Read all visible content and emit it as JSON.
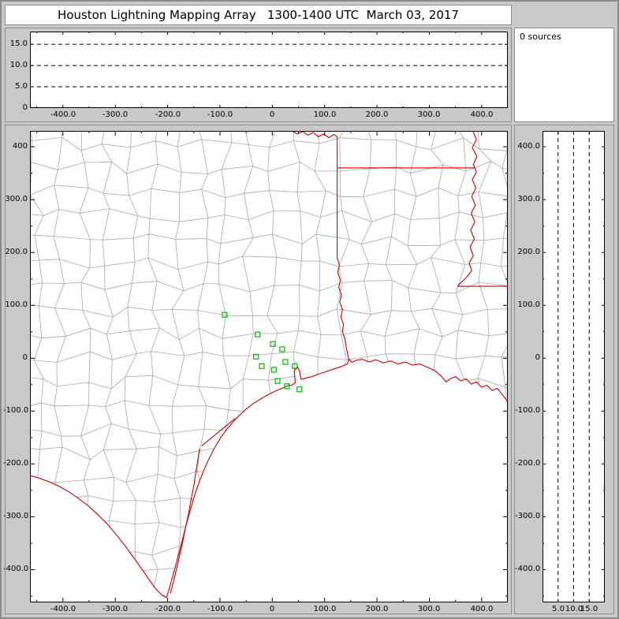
{
  "window": {
    "title": "Houston Lightning Mapping Array   1300-1400 UTC  March 03, 2017"
  },
  "sources_panel": {
    "label": "0 sources"
  },
  "alt_ew_panel": {
    "y_tick_labels": [
      "15.0",
      "10.0",
      "5.0",
      "0"
    ],
    "x_tick_labels": [
      "-400.0",
      "-300.0",
      "-200.0",
      "-100.0",
      "0",
      "100.0",
      "200.0",
      "300.0",
      "400.0"
    ]
  },
  "map_panel": {
    "y_tick_labels": [
      "400",
      "300.0",
      "200.0",
      "100.0",
      "0",
      "-100.0",
      "-200.0",
      "-300.0",
      "-400.0"
    ],
    "x_tick_labels": [
      "-400.0",
      "-300.0",
      "-200.0",
      "-100.0",
      "0",
      "100.0",
      "200.0",
      "300.0",
      "400.0"
    ]
  },
  "alt_ns_panel": {
    "y_tick_labels": [
      "400.0",
      "300.0",
      "200.0",
      "100.0",
      "0",
      "-100.0",
      "-200.0",
      "-300.0",
      "-400.0"
    ],
    "x_tick_labels": [
      "5.0",
      "10.0",
      "15.0"
    ]
  },
  "colors": {
    "window_bg": "#c9c9c9",
    "panel_border": "#8f8f8f",
    "plot_bg": "#ffffff",
    "axis": "#000000",
    "county_line": "#a8a8a8",
    "geo_line": "#cc0000",
    "station": "#00bb00"
  },
  "chart_data": [
    {
      "panel": "altitude_vs_east_west",
      "type": "scatter",
      "points": [],
      "sources_count": 0,
      "x_range_km": [
        -463,
        450
      ],
      "y_range_km": [
        0,
        18
      ],
      "x_ticks": [
        -400,
        -300,
        -200,
        -100,
        0,
        100,
        200,
        300,
        400
      ],
      "y_ticks": [
        15,
        10,
        5,
        0
      ],
      "dashed_gridlines_km": [
        5,
        10,
        15
      ],
      "grid": "dashed horizontal altitude lines",
      "legend": "none"
    },
    {
      "panel": "plan_view_map",
      "type": "scatter",
      "points": [],
      "sources_count": 0,
      "x_range_km": [
        -463,
        450
      ],
      "y_range_km": [
        -462,
        430
      ],
      "x_ticks": [
        -400,
        -300,
        -200,
        -100,
        0,
        100,
        200,
        300,
        400
      ],
      "y_ticks": [
        400,
        300,
        200,
        100,
        0,
        -100,
        -200,
        -300,
        -400
      ],
      "stations_km": [
        [
          -91,
          82
        ],
        [
          -28,
          45
        ],
        [
          1,
          27
        ],
        [
          19,
          17
        ],
        [
          -31,
          3
        ],
        [
          -20,
          -15
        ],
        [
          3,
          -22
        ],
        [
          25,
          -7
        ],
        [
          43,
          -15
        ],
        [
          10,
          -43
        ],
        [
          28,
          -53
        ],
        [
          52,
          -59
        ]
      ],
      "map_features": [
        "county boundaries (gray)",
        "state borders (red)",
        "Gulf of Mexico coastline (red)",
        "barrier islands (red)"
      ],
      "legend": "none"
    },
    {
      "panel": "altitude_vs_north_south",
      "type": "scatter",
      "points": [],
      "sources_count": 0,
      "x_range_km": [
        0,
        20
      ],
      "y_range_km": [
        -462,
        430
      ],
      "x_ticks": [
        5,
        10,
        15
      ],
      "y_ticks": [
        400,
        300,
        200,
        100,
        0,
        -100,
        -200,
        -300,
        -400
      ],
      "dashed_gridlines_km": [
        5,
        10,
        15
      ],
      "grid": "dashed vertical altitude lines",
      "legend": "none"
    }
  ]
}
